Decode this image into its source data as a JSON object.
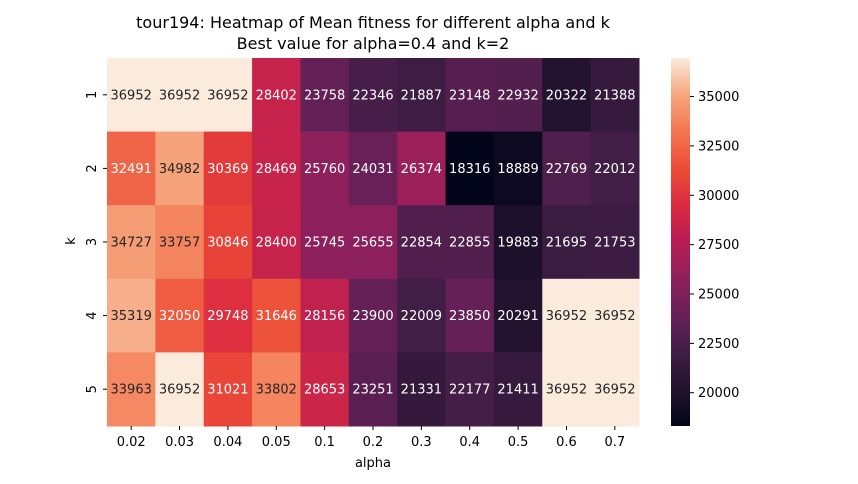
{
  "chart_data": {
    "type": "heatmap",
    "title": "tour194: Heatmap of Mean fitness for different alpha and k",
    "subtitle": "Best value for alpha=0.4 and k=2",
    "xlabel": "alpha",
    "ylabel": "k",
    "x_categories": [
      "0.02",
      "0.03",
      "0.04",
      "0.05",
      "0.1",
      "0.2",
      "0.3",
      "0.4",
      "0.5",
      "0.6",
      "0.7"
    ],
    "y_categories": [
      "1",
      "2",
      "3",
      "4",
      "5"
    ],
    "values": [
      [
        36952,
        36952,
        36952,
        28402,
        23758,
        22346,
        21887,
        23148,
        22932,
        20322,
        21388
      ],
      [
        32491,
        34982,
        30369,
        28469,
        25760,
        24031,
        26374,
        18316,
        18889,
        22769,
        22012
      ],
      [
        34727,
        33757,
        30846,
        28400,
        25745,
        25655,
        22854,
        22855,
        19883,
        21695,
        21753
      ],
      [
        35319,
        32050,
        29748,
        31646,
        28156,
        23900,
        22009,
        23850,
        20291,
        36952,
        36952
      ],
      [
        33963,
        36952,
        31021,
        33802,
        28653,
        23251,
        21331,
        22177,
        21411,
        36952,
        36952
      ]
    ],
    "colorbar": {
      "colormap": "rocket",
      "vmin": 18316,
      "vmax": 36952,
      "ticks": [
        "20000",
        "22500",
        "25000",
        "27500",
        "30000",
        "32500",
        "35000"
      ]
    },
    "grid": false
  }
}
